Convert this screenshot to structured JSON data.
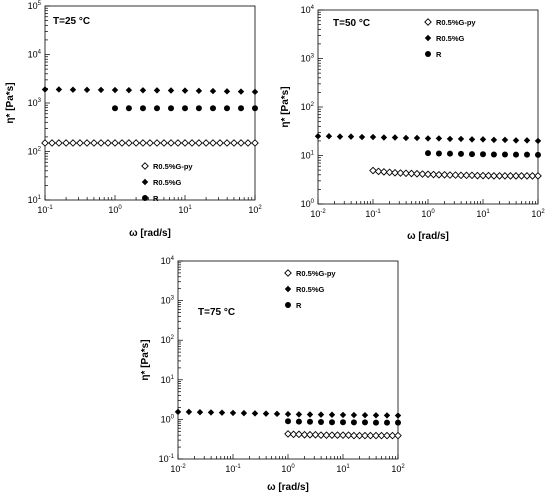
{
  "chart_data": [
    {
      "type": "scatter",
      "title": "T=25 °C",
      "xlabel": "ω [rad/s]",
      "ylabel": "η* [Pa*s]",
      "xscale": "log",
      "yscale": "log",
      "xlim": [
        0.1,
        100
      ],
      "ylim": [
        10,
        100000
      ],
      "x_tick_labels": [
        "10-1",
        "100",
        "101",
        "102"
      ],
      "y_tick_labels": [
        "101",
        "102",
        "103",
        "104",
        "105"
      ],
      "legend_position": "bottom-center",
      "series": [
        {
          "name": "R0.5%G-py",
          "marker": "open-diamond",
          "x": [
            0.1,
            0.126,
            0.158,
            0.2,
            0.251,
            0.316,
            0.398,
            0.501,
            0.631,
            0.794,
            1.0,
            1.26,
            1.58,
            2.0,
            2.51,
            3.16,
            3.98,
            5.01,
            6.31,
            7.94,
            10,
            12.6,
            15.8,
            20,
            25.1,
            31.6,
            39.8,
            50.1,
            63.1,
            79.4,
            100
          ],
          "y": [
            150,
            150,
            150,
            150,
            150,
            150,
            150,
            150,
            150,
            150,
            150,
            150,
            150,
            150,
            150,
            150,
            150,
            150,
            150,
            150,
            150,
            150,
            150,
            150,
            150,
            150,
            150,
            150,
            150,
            150,
            150
          ]
        },
        {
          "name": "R0.5%G",
          "marker": "filled-diamond",
          "x": [
            0.1,
            0.158,
            0.251,
            0.398,
            0.631,
            1.0,
            1.58,
            2.51,
            3.98,
            6.31,
            10,
            15.8,
            25.1,
            39.8,
            63.1,
            100
          ],
          "y": [
            1900,
            1900,
            1880,
            1870,
            1860,
            1850,
            1840,
            1830,
            1820,
            1810,
            1800,
            1780,
            1760,
            1740,
            1720,
            1700
          ]
        },
        {
          "name": "R",
          "marker": "filled-circle",
          "x": [
            1.0,
            1.58,
            2.51,
            3.98,
            6.31,
            10,
            15.8,
            25.1,
            39.8,
            63.1,
            100
          ],
          "y": [
            780,
            780,
            780,
            780,
            780,
            780,
            780,
            780,
            780,
            780,
            780
          ]
        }
      ]
    },
    {
      "type": "scatter",
      "title": "T=50 °C",
      "xlabel": "ω [rad/s]",
      "ylabel": "η* [Pa*s]",
      "xscale": "log",
      "yscale": "log",
      "xlim": [
        0.01,
        100
      ],
      "ylim": [
        1,
        10000
      ],
      "x_tick_labels": [
        "10-2",
        "10-1",
        "100",
        "101",
        "102"
      ],
      "y_tick_labels": [
        "100",
        "101",
        "102",
        "103",
        "104"
      ],
      "legend_position": "top-right",
      "series": [
        {
          "name": "R0.5%G-py",
          "marker": "open-diamond",
          "x": [
            0.1,
            0.126,
            0.158,
            0.2,
            0.251,
            0.316,
            0.398,
            0.501,
            0.631,
            0.794,
            1.0,
            1.26,
            1.58,
            2.0,
            2.51,
            3.16,
            3.98,
            5.01,
            6.31,
            7.94,
            10,
            12.6,
            15.8,
            20,
            25.1,
            31.6,
            39.8,
            50.1,
            63.1,
            79.4,
            100
          ],
          "y": [
            4.9,
            4.7,
            4.6,
            4.5,
            4.4,
            4.35,
            4.3,
            4.25,
            4.2,
            4.15,
            4.1,
            4.05,
            4.0,
            4.0,
            3.95,
            3.95,
            3.9,
            3.9,
            3.9,
            3.85,
            3.85,
            3.85,
            3.8,
            3.8,
            3.8,
            3.8,
            3.8,
            3.8,
            3.8,
            3.8,
            3.8
          ]
        },
        {
          "name": "R0.5%G",
          "marker": "filled-diamond",
          "x": [
            0.01,
            0.0158,
            0.0251,
            0.0398,
            0.0631,
            0.1,
            0.158,
            0.251,
            0.398,
            0.631,
            1.0,
            1.58,
            2.51,
            3.98,
            6.31,
            10,
            15.8,
            25.1,
            39.8,
            63.1,
            100
          ],
          "y": [
            25,
            25,
            24.5,
            24.5,
            24,
            24,
            23.5,
            23.5,
            23,
            23,
            22.5,
            22.5,
            22,
            22,
            21.5,
            21.5,
            21,
            21,
            20.5,
            20.5,
            20
          ]
        },
        {
          "name": "R",
          "marker": "filled-circle",
          "x": [
            1.0,
            1.58,
            2.51,
            3.98,
            6.31,
            10,
            15.8,
            25.1,
            39.8,
            63.1,
            100
          ],
          "y": [
            11.2,
            11.0,
            10.9,
            10.8,
            10.7,
            10.6,
            10.5,
            10.5,
            10.4,
            10.4,
            10.3
          ]
        }
      ]
    },
    {
      "type": "scatter",
      "title": "T=75 °C",
      "xlabel": "ω [rad/s]",
      "ylabel": "η* [Pa*s]",
      "xscale": "log",
      "yscale": "log",
      "xlim": [
        0.01,
        100
      ],
      "ylim": [
        0.1,
        10000
      ],
      "x_tick_labels": [
        "10-2",
        "10-1",
        "100",
        "101",
        "102"
      ],
      "y_tick_labels": [
        "10-1",
        "100",
        "101",
        "102",
        "103",
        "104"
      ],
      "legend_position": "top-right",
      "series": [
        {
          "name": "R0.5%G-py",
          "marker": "open-diamond",
          "x": [
            1.0,
            1.26,
            1.58,
            2.0,
            2.51,
            3.16,
            3.98,
            5.01,
            6.31,
            7.94,
            10,
            12.6,
            15.8,
            20,
            25.1,
            31.6,
            39.8,
            50.1,
            63.1,
            79.4,
            100
          ],
          "y": [
            0.43,
            0.42,
            0.42,
            0.41,
            0.41,
            0.41,
            0.4,
            0.4,
            0.4,
            0.4,
            0.4,
            0.4,
            0.39,
            0.39,
            0.39,
            0.39,
            0.39,
            0.39,
            0.39,
            0.39,
            0.39
          ]
        },
        {
          "name": "R0.5%G",
          "marker": "filled-diamond",
          "x": [
            0.01,
            0.0158,
            0.0251,
            0.0398,
            0.0631,
            0.1,
            0.158,
            0.251,
            0.398,
            0.631,
            1.0,
            1.58,
            2.51,
            3.98,
            6.31,
            10,
            15.8,
            25.1,
            39.8,
            63.1,
            100
          ],
          "y": [
            1.55,
            1.55,
            1.52,
            1.5,
            1.48,
            1.46,
            1.44,
            1.42,
            1.4,
            1.38,
            1.36,
            1.34,
            1.33,
            1.32,
            1.31,
            1.3,
            1.29,
            1.28,
            1.27,
            1.26,
            1.25
          ]
        },
        {
          "name": "R",
          "marker": "filled-circle",
          "x": [
            1.0,
            1.58,
            2.51,
            3.98,
            6.31,
            10,
            15.8,
            25.1,
            39.8,
            63.1,
            100
          ],
          "y": [
            0.9,
            0.88,
            0.87,
            0.86,
            0.85,
            0.85,
            0.84,
            0.84,
            0.83,
            0.83,
            0.83
          ]
        }
      ]
    }
  ]
}
